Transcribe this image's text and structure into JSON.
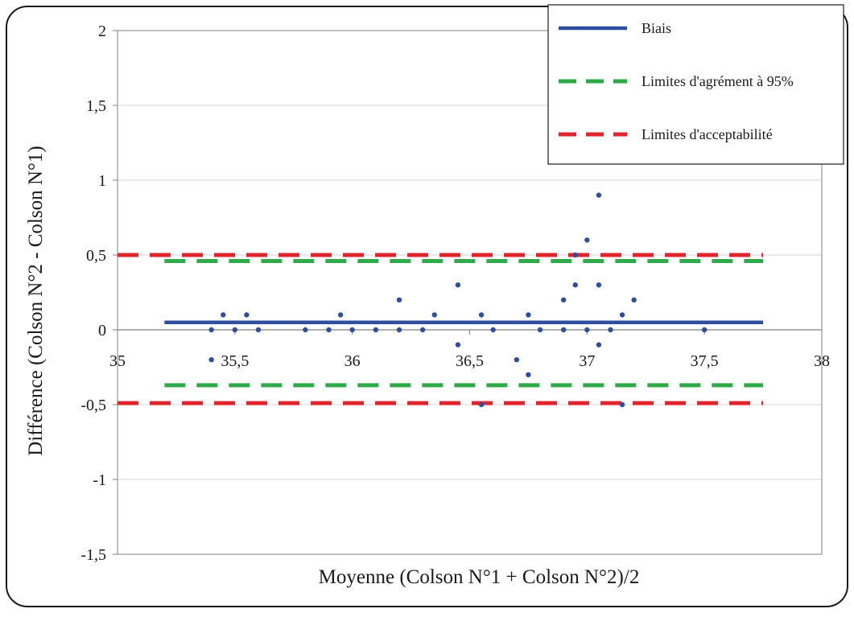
{
  "chart_data": {
    "type": "scatter",
    "title": "",
    "xlabel": "Moyenne (Colson N°1 + Colson N°2)/2",
    "ylabel": "Différence (Colson N°2 -  Colson N°1)",
    "xlim": [
      35,
      38
    ],
    "ylim": [
      -1.5,
      2
    ],
    "x_ticks": [
      35,
      35.5,
      36,
      36.5,
      37,
      37.5,
      38
    ],
    "x_tick_labels": [
      "35",
      "35,5",
      "36",
      "36,5",
      "37",
      "37,5",
      "38"
    ],
    "y_ticks": [
      2,
      1.5,
      1,
      0.5,
      0,
      -0.5,
      -1,
      -1.5
    ],
    "y_tick_labels": [
      "2",
      "1,5",
      "1",
      "0,5",
      "0",
      "-0,5",
      "-1",
      "-1,5"
    ],
    "grid": "horizontal",
    "legend_position": "top-right",
    "points": [
      {
        "x": 35.4,
        "y": 0
      },
      {
        "x": 35.4,
        "y": -0.2
      },
      {
        "x": 35.45,
        "y": 0.1
      },
      {
        "x": 35.5,
        "y": 0
      },
      {
        "x": 35.55,
        "y": 0.1
      },
      {
        "x": 35.6,
        "y": 0
      },
      {
        "x": 35.8,
        "y": 0
      },
      {
        "x": 35.9,
        "y": 0
      },
      {
        "x": 35.95,
        "y": 0.1
      },
      {
        "x": 36.0,
        "y": 0
      },
      {
        "x": 36.1,
        "y": 0
      },
      {
        "x": 36.2,
        "y": 0.2
      },
      {
        "x": 36.2,
        "y": 0
      },
      {
        "x": 36.3,
        "y": 0
      },
      {
        "x": 36.35,
        "y": 0.1
      },
      {
        "x": 36.45,
        "y": 0.3
      },
      {
        "x": 36.45,
        "y": -0.1
      },
      {
        "x": 36.55,
        "y": 0.1
      },
      {
        "x": 36.55,
        "y": -0.5
      },
      {
        "x": 36.6,
        "y": 0
      },
      {
        "x": 36.7,
        "y": -0.2
      },
      {
        "x": 36.75,
        "y": 0.1
      },
      {
        "x": 36.75,
        "y": -0.3
      },
      {
        "x": 36.8,
        "y": 0
      },
      {
        "x": 36.9,
        "y": 0.2
      },
      {
        "x": 36.9,
        "y": 0
      },
      {
        "x": 36.95,
        "y": 0.3
      },
      {
        "x": 36.95,
        "y": 0.5
      },
      {
        "x": 37.0,
        "y": 0.6
      },
      {
        "x": 37.0,
        "y": 0
      },
      {
        "x": 37.05,
        "y": 0.9
      },
      {
        "x": 37.05,
        "y": 0.3
      },
      {
        "x": 37.05,
        "y": -0.1
      },
      {
        "x": 37.1,
        "y": 0
      },
      {
        "x": 37.15,
        "y": 0.1
      },
      {
        "x": 37.15,
        "y": -0.5
      },
      {
        "x": 37.2,
        "y": 0.2
      },
      {
        "x": 37.5,
        "y": 0
      }
    ],
    "series": [
      {
        "name": "Biais",
        "color": "#2f4e9e",
        "dash": "solid",
        "x": [
          35.2,
          37.75
        ],
        "values": [
          0.05,
          0.05
        ]
      },
      {
        "name": "Limites d'agrément à 95%",
        "color": "#2eaa48",
        "dash": "dashed",
        "x": [
          35.2,
          37.75
        ],
        "values": [
          0.46,
          0.46
        ],
        "values_lower": [
          -0.37,
          -0.37
        ]
      },
      {
        "name": "Limites d'acceptabilité",
        "color": "#e0262d",
        "dash": "dashed",
        "x": [
          35.0,
          37.75
        ],
        "values": [
          0.5,
          0.5
        ],
        "values_lower": [
          -0.49,
          -0.49
        ]
      }
    ],
    "point_color": "#2f4e9e",
    "axis_color": "#808080"
  }
}
